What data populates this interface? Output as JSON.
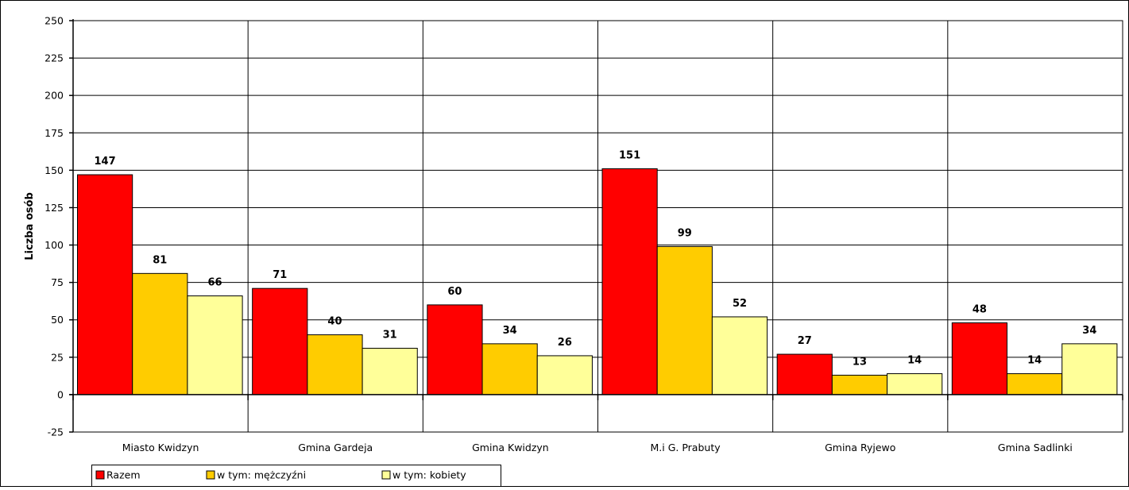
{
  "chart_data": {
    "type": "bar",
    "title": "",
    "xlabel": "",
    "ylabel": "Liczba osób",
    "ylim": [
      -25,
      250
    ],
    "yticks": [
      -25,
      0,
      25,
      50,
      75,
      100,
      125,
      150,
      175,
      200,
      225,
      250
    ],
    "categories": [
      "Miasto Kwidzyn",
      "Gmina Gardeja",
      "Gmina Kwidzyn",
      "M.i G. Prabuty",
      "Gmina Ryjewo",
      "Gmina Sadlinki"
    ],
    "series": [
      {
        "name": "Razem",
        "color": "#ff0000",
        "values": [
          147,
          71,
          60,
          151,
          27,
          48
        ]
      },
      {
        "name": "w tym: mężczyźni",
        "color": "#ffcc00",
        "values": [
          81,
          40,
          34,
          99,
          13,
          14
        ]
      },
      {
        "name": "w tym: kobiety",
        "color": "#ffff99",
        "values": [
          66,
          31,
          26,
          52,
          14,
          34
        ]
      }
    ],
    "grid": true,
    "data_labels": true,
    "legend_position": "bottom-left"
  }
}
